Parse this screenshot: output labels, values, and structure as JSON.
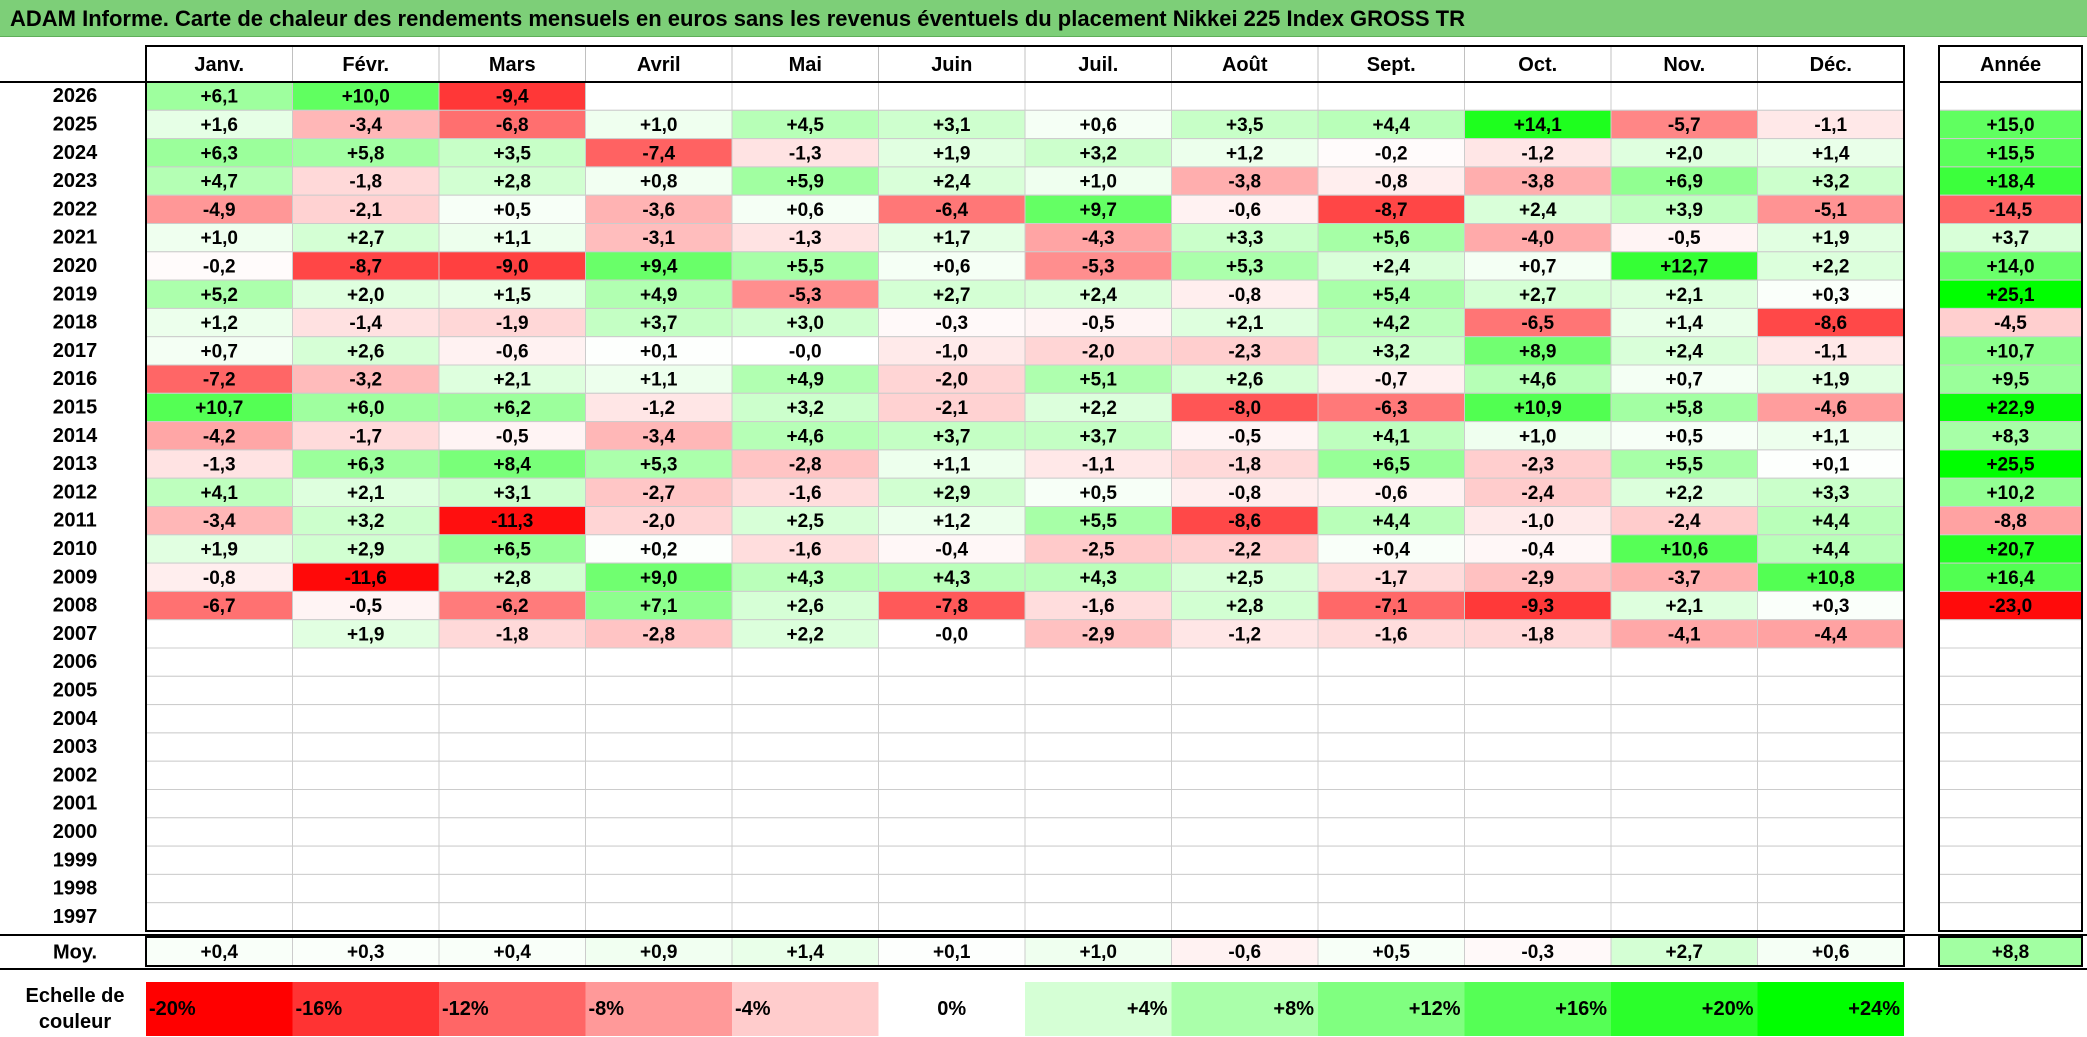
{
  "title": "ADAM Informe. Carte de chaleur des rendements mensuels en euros sans les revenus éventuels du placement Nikkei 225 Index GROSS TR",
  "chart_data": {
    "type": "heatmap",
    "months": [
      "Janv.",
      "Févr.",
      "Mars",
      "Avril",
      "Mai",
      "Juin",
      "Juil.",
      "Août",
      "Sept.",
      "Oct.",
      "Nov.",
      "Déc."
    ],
    "year_header": "Année",
    "average_label": "Moy.",
    "rows": [
      {
        "year": "2026",
        "values": [
          "+6,1",
          "+10,0",
          "-9,4",
          "",
          "",
          "",
          "",
          "",
          "",
          "",
          "",
          ""
        ],
        "annual": ""
      },
      {
        "year": "2025",
        "values": [
          "+1,6",
          "-3,4",
          "-6,8",
          "+1,0",
          "+4,5",
          "+3,1",
          "+0,6",
          "+3,5",
          "+4,4",
          "+14,1",
          "-5,7",
          "-1,1"
        ],
        "annual": "+15,0"
      },
      {
        "year": "2024",
        "values": [
          "+6,3",
          "+5,8",
          "+3,5",
          "-7,4",
          "-1,3",
          "+1,9",
          "+3,2",
          "+1,2",
          "-0,2",
          "-1,2",
          "+2,0",
          "+1,4"
        ],
        "annual": "+15,5"
      },
      {
        "year": "2023",
        "values": [
          "+4,7",
          "-1,8",
          "+2,8",
          "+0,8",
          "+5,9",
          "+2,4",
          "+1,0",
          "-3,8",
          "-0,8",
          "-3,8",
          "+6,9",
          "+3,2"
        ],
        "annual": "+18,4"
      },
      {
        "year": "2022",
        "values": [
          "-4,9",
          "-2,1",
          "+0,5",
          "-3,6",
          "+0,6",
          "-6,4",
          "+9,7",
          "-0,6",
          "-8,7",
          "+2,4",
          "+3,9",
          "-5,1"
        ],
        "annual": "-14,5"
      },
      {
        "year": "2021",
        "values": [
          "+1,0",
          "+2,7",
          "+1,1",
          "-3,1",
          "-1,3",
          "+1,7",
          "-4,3",
          "+3,3",
          "+5,6",
          "-4,0",
          "-0,5",
          "+1,9"
        ],
        "annual": "+3,7"
      },
      {
        "year": "2020",
        "values": [
          "-0,2",
          "-8,7",
          "-9,0",
          "+9,4",
          "+5,5",
          "+0,6",
          "-5,3",
          "+5,3",
          "+2,4",
          "+0,7",
          "+12,7",
          "+2,2"
        ],
        "annual": "+14,0"
      },
      {
        "year": "2019",
        "values": [
          "+5,2",
          "+2,0",
          "+1,5",
          "+4,9",
          "-5,3",
          "+2,7",
          "+2,4",
          "-0,8",
          "+5,4",
          "+2,7",
          "+2,1",
          "+0,3"
        ],
        "annual": "+25,1"
      },
      {
        "year": "2018",
        "values": [
          "+1,2",
          "-1,4",
          "-1,9",
          "+3,7",
          "+3,0",
          "-0,3",
          "-0,5",
          "+2,1",
          "+4,2",
          "-6,5",
          "+1,4",
          "-8,6"
        ],
        "annual": "-4,5"
      },
      {
        "year": "2017",
        "values": [
          "+0,7",
          "+2,6",
          "-0,6",
          "+0,1",
          "-0,0",
          "-1,0",
          "-2,0",
          "-2,3",
          "+3,2",
          "+8,9",
          "+2,4",
          "-1,1"
        ],
        "annual": "+10,7"
      },
      {
        "year": "2016",
        "values": [
          "-7,2",
          "-3,2",
          "+2,1",
          "+1,1",
          "+4,9",
          "-2,0",
          "+5,1",
          "+2,6",
          "-0,7",
          "+4,6",
          "+0,7",
          "+1,9"
        ],
        "annual": "+9,5"
      },
      {
        "year": "2015",
        "values": [
          "+10,7",
          "+6,0",
          "+6,2",
          "-1,2",
          "+3,2",
          "-2,1",
          "+2,2",
          "-8,0",
          "-6,3",
          "+10,9",
          "+5,8",
          "-4,6"
        ],
        "annual": "+22,9"
      },
      {
        "year": "2014",
        "values": [
          "-4,2",
          "-1,7",
          "-0,5",
          "-3,4",
          "+4,6",
          "+3,7",
          "+3,7",
          "-0,5",
          "+4,1",
          "+1,0",
          "+0,5",
          "+1,1"
        ],
        "annual": "+8,3"
      },
      {
        "year": "2013",
        "values": [
          "-1,3",
          "+6,3",
          "+8,4",
          "+5,3",
          "-2,8",
          "+1,1",
          "-1,1",
          "-1,8",
          "+6,5",
          "-2,3",
          "+5,5",
          "+0,1"
        ],
        "annual": "+25,5"
      },
      {
        "year": "2012",
        "values": [
          "+4,1",
          "+2,1",
          "+3,1",
          "-2,7",
          "-1,6",
          "+2,9",
          "+0,5",
          "-0,8",
          "-0,6",
          "-2,4",
          "+2,2",
          "+3,3"
        ],
        "annual": "+10,2"
      },
      {
        "year": "2011",
        "values": [
          "-3,4",
          "+3,2",
          "-11,3",
          "-2,0",
          "+2,5",
          "+1,2",
          "+5,5",
          "-8,6",
          "+4,4",
          "-1,0",
          "-2,4",
          "+4,4"
        ],
        "annual": "-8,8"
      },
      {
        "year": "2010",
        "values": [
          "+1,9",
          "+2,9",
          "+6,5",
          "+0,2",
          "-1,6",
          "-0,4",
          "-2,5",
          "-2,2",
          "+0,4",
          "-0,4",
          "+10,6",
          "+4,4"
        ],
        "annual": "+20,7"
      },
      {
        "year": "2009",
        "values": [
          "-0,8",
          "-11,6",
          "+2,8",
          "+9,0",
          "+4,3",
          "+4,3",
          "+4,3",
          "+2,5",
          "-1,7",
          "-2,9",
          "-3,7",
          "+10,8"
        ],
        "annual": "+16,4"
      },
      {
        "year": "2008",
        "values": [
          "-6,7",
          "-0,5",
          "-6,2",
          "+7,1",
          "+2,6",
          "-7,8",
          "-1,6",
          "+2,8",
          "-7,1",
          "-9,3",
          "+2,1",
          "+0,3"
        ],
        "annual": "-23,0"
      },
      {
        "year": "2007",
        "values": [
          "",
          "+1,9",
          "-1,8",
          "-2,8",
          "+2,2",
          "-0,0",
          "-2,9",
          "-1,2",
          "-1,6",
          "-1,8",
          "-4,1",
          "-4,4"
        ],
        "annual": ""
      },
      {
        "year": "2006",
        "values": [
          "",
          "",
          "",
          "",
          "",
          "",
          "",
          "",
          "",
          "",
          "",
          ""
        ],
        "annual": ""
      },
      {
        "year": "2005",
        "values": [
          "",
          "",
          "",
          "",
          "",
          "",
          "",
          "",
          "",
          "",
          "",
          ""
        ],
        "annual": ""
      },
      {
        "year": "2004",
        "values": [
          "",
          "",
          "",
          "",
          "",
          "",
          "",
          "",
          "",
          "",
          "",
          ""
        ],
        "annual": ""
      },
      {
        "year": "2003",
        "values": [
          "",
          "",
          "",
          "",
          "",
          "",
          "",
          "",
          "",
          "",
          "",
          ""
        ],
        "annual": ""
      },
      {
        "year": "2002",
        "values": [
          "",
          "",
          "",
          "",
          "",
          "",
          "",
          "",
          "",
          "",
          "",
          ""
        ],
        "annual": ""
      },
      {
        "year": "2001",
        "values": [
          "",
          "",
          "",
          "",
          "",
          "",
          "",
          "",
          "",
          "",
          "",
          ""
        ],
        "annual": ""
      },
      {
        "year": "2000",
        "values": [
          "",
          "",
          "",
          "",
          "",
          "",
          "",
          "",
          "",
          "",
          "",
          ""
        ],
        "annual": ""
      },
      {
        "year": "1999",
        "values": [
          "",
          "",
          "",
          "",
          "",
          "",
          "",
          "",
          "",
          "",
          "",
          ""
        ],
        "annual": ""
      },
      {
        "year": "1998",
        "values": [
          "",
          "",
          "",
          "",
          "",
          "",
          "",
          "",
          "",
          "",
          "",
          ""
        ],
        "annual": ""
      },
      {
        "year": "1997",
        "values": [
          "",
          "",
          "",
          "",
          "",
          "",
          "",
          "",
          "",
          "",
          "",
          ""
        ],
        "annual": ""
      }
    ],
    "averages": [
      "+0,4",
      "+0,3",
      "+0,4",
      "+0,9",
      "+1,4",
      "+0,1",
      "+1,0",
      "-0,6",
      "+0,5",
      "-0,3",
      "+2,7",
      "+0,6"
    ],
    "average_annual": "+8,8",
    "scale_label_lines": [
      "Echelle de",
      "couleur"
    ],
    "scale": [
      {
        "label": "-20%",
        "value": -20,
        "align": "left"
      },
      {
        "label": "-16%",
        "value": -16,
        "align": "left"
      },
      {
        "label": "-12%",
        "value": -12,
        "align": "left"
      },
      {
        "label": "-8%",
        "value": -8,
        "align": "left"
      },
      {
        "label": "-4%",
        "value": -4,
        "align": "left"
      },
      {
        "label": "0%",
        "value": 0,
        "align": "center"
      },
      {
        "label": "+4%",
        "value": 4,
        "align": "right"
      },
      {
        "label": "+8%",
        "value": 8,
        "align": "right"
      },
      {
        "label": "+12%",
        "value": 12,
        "align": "right"
      },
      {
        "label": "+16%",
        "value": 16,
        "align": "right"
      },
      {
        "label": "+20%",
        "value": 20,
        "align": "right"
      },
      {
        "label": "+24%",
        "value": 24,
        "align": "right"
      }
    ],
    "colors": {
      "negative": "#ff0000",
      "neutral": "#ffffff",
      "positive": "#00ff00",
      "border": "#c0c0c0"
    }
  }
}
